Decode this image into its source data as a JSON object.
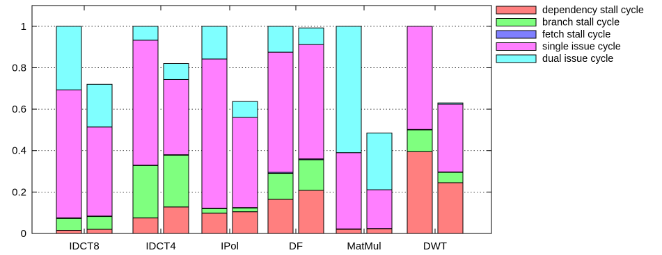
{
  "chart_data": {
    "type": "bar",
    "stacked": true,
    "title": "",
    "xlabel": "",
    "ylabel": "",
    "ylim": [
      0,
      1.1
    ],
    "yticks": [
      0,
      0.2,
      0.4,
      0.6,
      0.8,
      1
    ],
    "ytick_labels": [
      "0",
      "0.2",
      "0.4",
      "0.6",
      "0.8",
      "1"
    ],
    "grid": "dotted horizontal",
    "legend_position": "outside-right-top",
    "groups": [
      "IDCT8",
      "IDCT4",
      "IPol",
      "DF",
      "MatMul",
      "DWT"
    ],
    "bars_per_group": 2,
    "series": [
      {
        "name": "dependency stall cycle",
        "color": "#ff7f7f",
        "values": [
          0.015,
          0.02,
          0.075,
          0.128,
          0.098,
          0.105,
          0.165,
          0.208,
          0.02,
          0.022,
          0.395,
          0.245
        ]
      },
      {
        "name": "branch stall cycle",
        "color": "#7fff7f",
        "values": [
          0.058,
          0.062,
          0.253,
          0.25,
          0.022,
          0.018,
          0.125,
          0.148,
          0.0,
          0.0,
          0.105,
          0.05
        ]
      },
      {
        "name": "fetch stall cycle",
        "color": "#7f7fff",
        "values": [
          0.002,
          0.002,
          0.002,
          0.002,
          0.002,
          0.002,
          0.005,
          0.004,
          0.002,
          0.002,
          0.002,
          0.002
        ]
      },
      {
        "name": "single issue cycle",
        "color": "#ff7fff",
        "values": [
          0.618,
          0.43,
          0.603,
          0.363,
          0.72,
          0.435,
          0.58,
          0.552,
          0.368,
          0.187,
          0.498,
          0.327
        ]
      },
      {
        "name": "dual issue cycle",
        "color": "#7fffff",
        "values": [
          0.307,
          0.206,
          0.067,
          0.077,
          0.158,
          0.077,
          0.125,
          0.08,
          0.61,
          0.274,
          0.0,
          0.006
        ]
      }
    ]
  }
}
